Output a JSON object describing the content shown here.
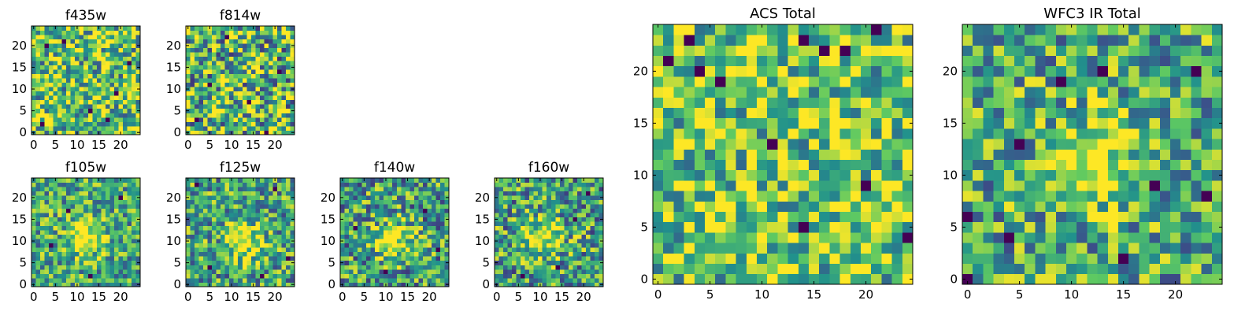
{
  "figure": {
    "background": "#ffffff"
  },
  "colormap": {
    "name": "viridis",
    "stops": [
      "#440154",
      "#3b528b",
      "#21918c",
      "#5ec962",
      "#fde725"
    ]
  },
  "chart_data": [
    {
      "type": "heatmap",
      "title": "f435w",
      "grid_size": 25,
      "xticks": [
        0,
        5,
        10,
        15,
        20
      ],
      "yticks": [
        0,
        5,
        10,
        15,
        20
      ],
      "xlim": [
        0,
        25
      ],
      "ylim": [
        0,
        25
      ],
      "pattern": "uniform_noise",
      "mean": 0.72,
      "noise": 0.45,
      "dark_pixels": [
        [
          3,
          20
        ],
        [
          7,
          21
        ],
        [
          22,
          16
        ],
        [
          13,
          5
        ],
        [
          19,
          9
        ],
        [
          2,
          2
        ],
        [
          17,
          3
        ]
      ]
    },
    {
      "type": "heatmap",
      "title": "f814w",
      "grid_size": 25,
      "xticks": [
        0,
        5,
        10,
        15,
        20
      ],
      "yticks": [
        0,
        5,
        10,
        15,
        20
      ],
      "xlim": [
        0,
        25
      ],
      "ylim": [
        0,
        25
      ],
      "pattern": "uniform_noise",
      "mean": 0.66,
      "noise": 0.5,
      "dark_pixels": [
        [
          2,
          3
        ],
        [
          9,
          22
        ],
        [
          21,
          14
        ],
        [
          14,
          7
        ],
        [
          5,
          11
        ],
        [
          18,
          0
        ]
      ]
    },
    {
      "type": "heatmap",
      "title": "f105w",
      "grid_size": 25,
      "xticks": [
        0,
        5,
        10,
        15,
        20
      ],
      "yticks": [
        0,
        5,
        10,
        15,
        20
      ],
      "xlim": [
        0,
        25
      ],
      "ylim": [
        0,
        25
      ],
      "pattern": "central_source",
      "mean": 0.6,
      "noise": 0.35,
      "center": [
        12,
        11
      ],
      "dark_pixels": [
        [
          4,
          9
        ],
        [
          8,
          17
        ],
        [
          13,
          2
        ],
        [
          20,
          20
        ]
      ]
    },
    {
      "type": "heatmap",
      "title": "f125w",
      "grid_size": 25,
      "xticks": [
        0,
        5,
        10,
        15,
        20
      ],
      "yticks": [
        0,
        5,
        10,
        15,
        20
      ],
      "xlim": [
        0,
        25
      ],
      "ylim": [
        0,
        25
      ],
      "pattern": "central_source",
      "mean": 0.58,
      "noise": 0.38,
      "center": [
        13,
        10
      ],
      "dark_pixels": [
        [
          2,
          23
        ],
        [
          20,
          22
        ],
        [
          5,
          4
        ],
        [
          17,
          2
        ],
        [
          23,
          6
        ]
      ]
    },
    {
      "type": "heatmap",
      "title": "f140w",
      "grid_size": 25,
      "xticks": [
        0,
        5,
        10,
        15,
        20
      ],
      "yticks": [
        0,
        5,
        10,
        15,
        20
      ],
      "xlim": [
        0,
        25
      ],
      "ylim": [
        0,
        25
      ],
      "pattern": "central_source",
      "mean": 0.56,
      "noise": 0.4,
      "center": [
        12,
        10
      ],
      "dark_pixels": [
        [
          3,
          13
        ],
        [
          10,
          3
        ],
        [
          19,
          17
        ],
        [
          22,
          8
        ]
      ]
    },
    {
      "type": "heatmap",
      "title": "f160w",
      "grid_size": 25,
      "xticks": [
        0,
        5,
        10,
        15,
        20
      ],
      "yticks": [
        0,
        5,
        10,
        15,
        20
      ],
      "xlim": [
        0,
        25
      ],
      "ylim": [
        0,
        25
      ],
      "pattern": "central_source",
      "mean": 0.57,
      "noise": 0.4,
      "center": [
        11,
        11
      ],
      "dark_pixels": [
        [
          6,
          2
        ],
        [
          18,
          15
        ],
        [
          21,
          21
        ],
        [
          14,
          4
        ]
      ]
    },
    {
      "type": "heatmap",
      "title": "ACS Total",
      "grid_size": 25,
      "xticks": [
        0,
        5,
        10,
        15,
        20
      ],
      "yticks": [
        0,
        5,
        10,
        15,
        20
      ],
      "xlim": [
        0,
        25
      ],
      "ylim": [
        0,
        25
      ],
      "pattern": "uniform_noise",
      "mean": 0.74,
      "noise": 0.4,
      "dark_pixels": [
        [
          3,
          23
        ],
        [
          14,
          23
        ],
        [
          21,
          24
        ],
        [
          18,
          22
        ],
        [
          16,
          22
        ],
        [
          4,
          20
        ],
        [
          6,
          19
        ],
        [
          14,
          5
        ],
        [
          24,
          4
        ],
        [
          20,
          9
        ],
        [
          11,
          13
        ],
        [
          1,
          21
        ]
      ]
    },
    {
      "type": "heatmap",
      "title": "WFC3 IR Total",
      "grid_size": 25,
      "xticks": [
        0,
        5,
        10,
        15,
        20
      ],
      "yticks": [
        0,
        5,
        10,
        15,
        20
      ],
      "xlim": [
        0,
        25
      ],
      "ylim": [
        0,
        25
      ],
      "pattern": "central_source",
      "mean": 0.6,
      "noise": 0.38,
      "center": [
        12,
        11
      ],
      "dark_pixels": [
        [
          0,
          0
        ],
        [
          0,
          6
        ],
        [
          4,
          4
        ],
        [
          18,
          9
        ],
        [
          23,
          8
        ],
        [
          9,
          19
        ],
        [
          22,
          20
        ],
        [
          5,
          13
        ],
        [
          13,
          20
        ],
        [
          15,
          2
        ]
      ]
    }
  ]
}
